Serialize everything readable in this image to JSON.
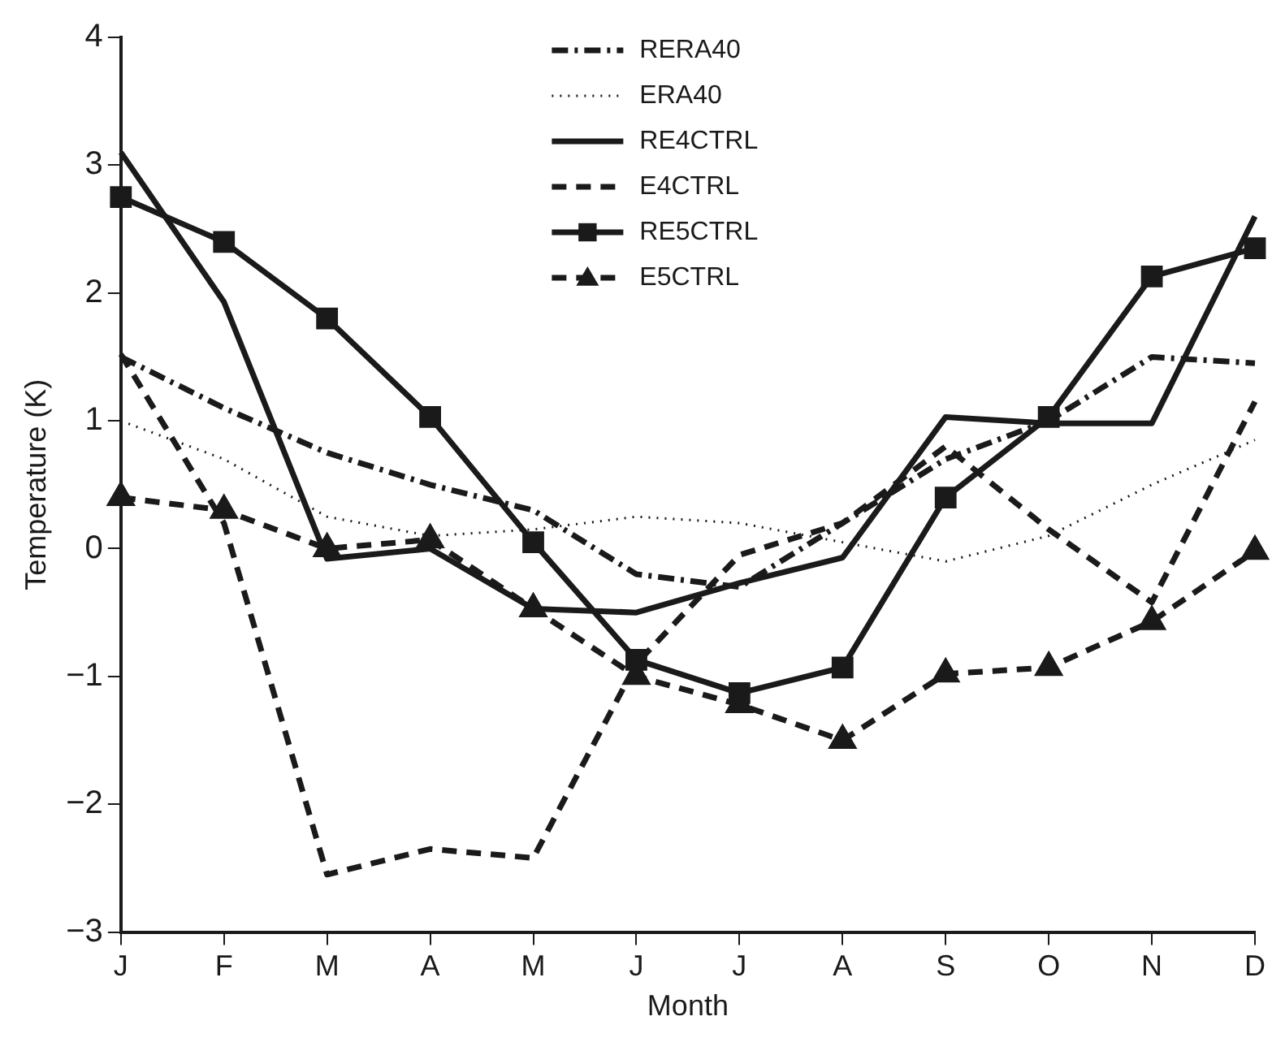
{
  "chart_data": {
    "type": "line",
    "xlabel": "Month",
    "ylabel": "Temperature (K)",
    "categories": [
      "J",
      "F",
      "M",
      "A",
      "M",
      "J",
      "J",
      "A",
      "S",
      "O",
      "N",
      "D"
    ],
    "ylim": [
      -3,
      4
    ],
    "yticks": [
      -3,
      -2,
      -1,
      0,
      1,
      2,
      3,
      4
    ],
    "legend": "top",
    "series": [
      {
        "name": "RERA40",
        "color": "#1a1a1a",
        "line_style": "dashdot",
        "marker": "none",
        "values": [
          1.5,
          1.1,
          0.75,
          0.5,
          0.3,
          -0.2,
          -0.3,
          0.2,
          0.7,
          1.0,
          1.5,
          1.45
        ]
      },
      {
        "name": "ERA40",
        "color": "#1a1a1a",
        "line_style": "dotted",
        "marker": "none",
        "values": [
          1.0,
          0.7,
          0.25,
          0.1,
          0.15,
          0.25,
          0.2,
          0.05,
          -0.1,
          0.1,
          0.5,
          0.85
        ]
      },
      {
        "name": "RE4CTRL",
        "color": "#1a1a1a",
        "line_style": "solid",
        "marker": "none",
        "values": [
          3.1,
          1.93,
          -0.08,
          0.0,
          -0.47,
          -0.5,
          -0.27,
          -0.07,
          1.03,
          0.98,
          0.98,
          2.6
        ]
      },
      {
        "name": "E4CTRL",
        "color": "#1a1a1a",
        "line_style": "dashed",
        "marker": "none",
        "values": [
          1.52,
          0.2,
          -2.55,
          -2.35,
          -2.42,
          -0.9,
          -0.05,
          0.2,
          0.8,
          0.15,
          -0.42,
          1.15
        ]
      },
      {
        "name": "RE5CTRL",
        "color": "#1a1a1a",
        "line_style": "solid",
        "marker": "square",
        "values": [
          2.75,
          2.4,
          1.8,
          1.03,
          0.05,
          -0.87,
          -1.13,
          -0.93,
          0.4,
          1.03,
          2.13,
          2.35
        ]
      },
      {
        "name": "E5CTRL",
        "color": "#1a1a1a",
        "line_style": "dashed",
        "marker": "triangle",
        "values": [
          0.4,
          0.3,
          0.0,
          0.07,
          -0.47,
          -1.0,
          -1.22,
          -1.5,
          -0.98,
          -0.93,
          -0.57,
          -0.02
        ]
      }
    ]
  }
}
